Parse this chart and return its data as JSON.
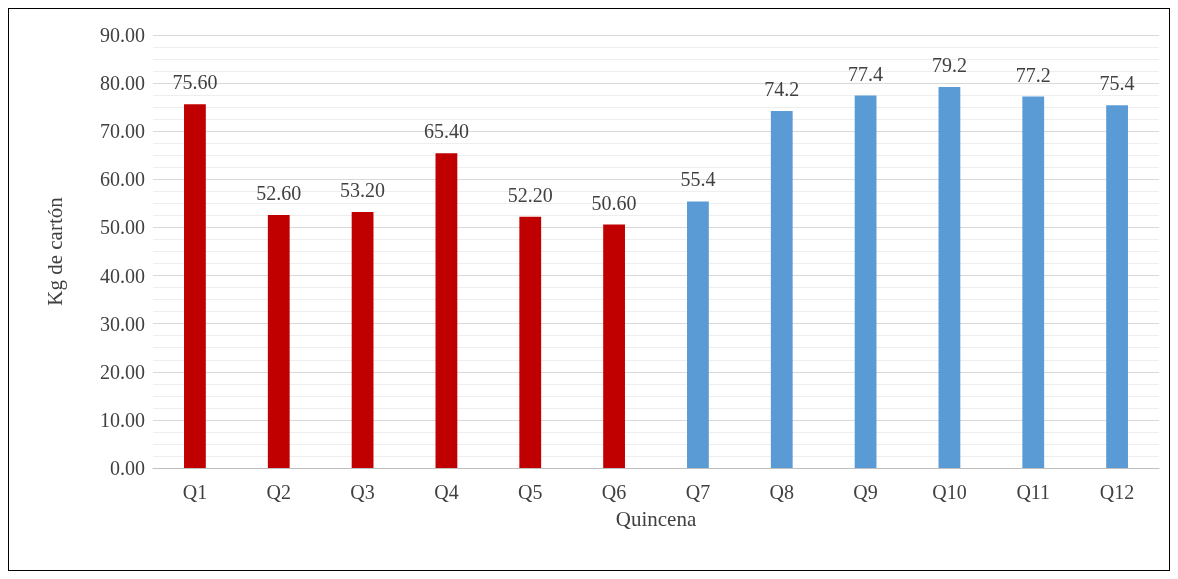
{
  "chart_data": {
    "type": "bar",
    "xlabel": "Quincena",
    "ylabel": "Kg de cartón",
    "categories": [
      "Q1",
      "Q2",
      "Q3",
      "Q4",
      "Q5",
      "Q6",
      "Q7",
      "Q8",
      "Q9",
      "Q10",
      "Q11",
      "Q12"
    ],
    "values": [
      75.6,
      52.6,
      53.2,
      65.4,
      52.2,
      50.6,
      55.4,
      74.2,
      77.4,
      79.2,
      77.2,
      75.4
    ],
    "colors": [
      "#c00000",
      "#c00000",
      "#c00000",
      "#c00000",
      "#c00000",
      "#c00000",
      "#5b9bd5",
      "#5b9bd5",
      "#5b9bd5",
      "#5b9bd5",
      "#5b9bd5",
      "#5b9bd5"
    ],
    "value_labels": [
      "75.60",
      "52.60",
      "53.20",
      "65.40",
      "52.20",
      "50.60",
      "55.4",
      "74.2",
      "77.4",
      "79.2",
      "77.2",
      "75.4"
    ],
    "ylim": [
      0,
      90
    ],
    "yticks": [
      {
        "value": 0,
        "label": "0.00"
      },
      {
        "value": 10,
        "label": "10.00"
      },
      {
        "value": 20,
        "label": "20.00"
      },
      {
        "value": 30,
        "label": "30.00"
      },
      {
        "value": 40,
        "label": "40.00"
      },
      {
        "value": 50,
        "label": "50.00"
      },
      {
        "value": 60,
        "label": "60.00"
      },
      {
        "value": 70,
        "label": "70.00"
      },
      {
        "value": 80,
        "label": "80.00"
      },
      {
        "value": 90,
        "label": "90.00"
      }
    ],
    "grid": "y"
  }
}
